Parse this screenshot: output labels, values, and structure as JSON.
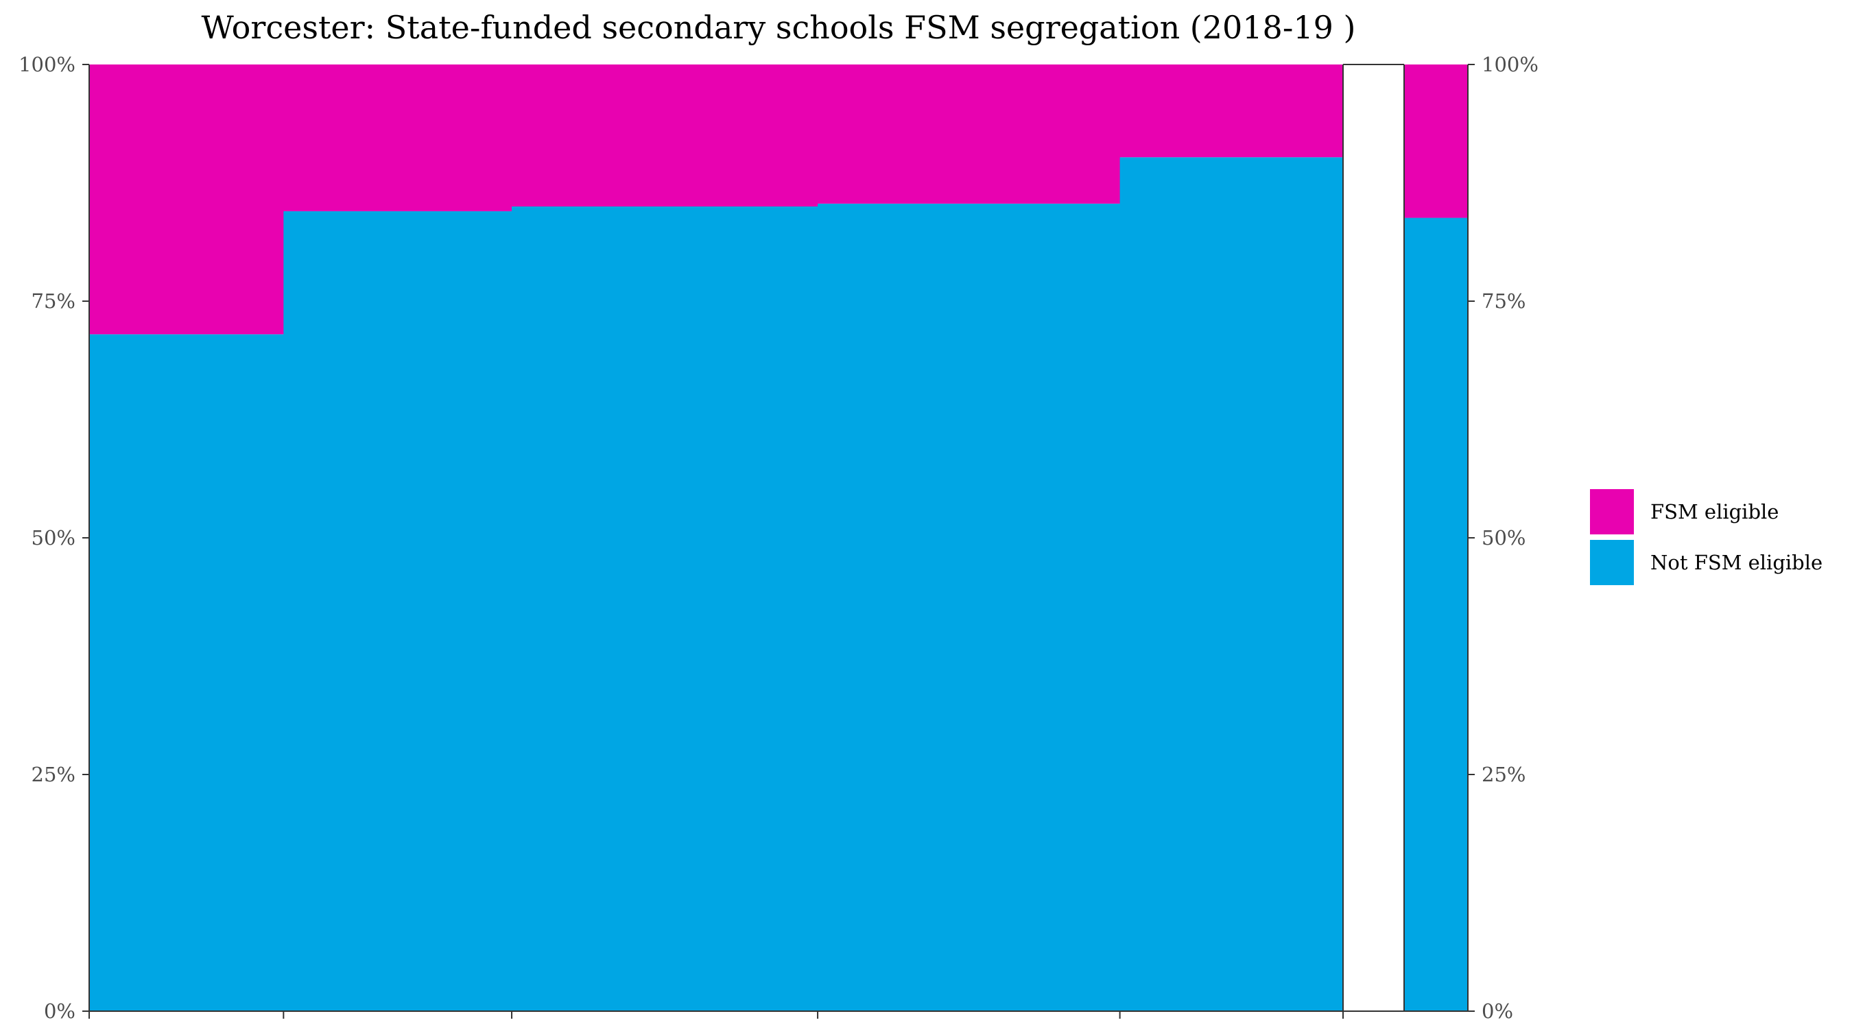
{
  "chart_data": {
    "type": "bar",
    "subtype": "marimekko-stacked-100",
    "title": "Worcester: State-funded secondary schools FSM segregation (2018-19 )",
    "xlabel": "",
    "ylabel": "",
    "ylim": [
      0,
      1
    ],
    "y_ticks": [
      0,
      0.25,
      0.5,
      0.75,
      1
    ],
    "y_tick_labels": [
      "0%",
      "25%",
      "50%",
      "75%",
      "100%"
    ],
    "y_axis_both_sides": true,
    "grid": false,
    "legend_position": "right",
    "colors": {
      "FSM eligible": "#e802b0",
      "Not FSM eligible": "#00a6e4"
    },
    "series_names": [
      "FSM eligible",
      "Not FSM eligible"
    ],
    "bars": [
      {
        "x_start": 0.0,
        "x_end": 0.155,
        "not_fsm_share": 0.715,
        "fsm_share": 0.285
      },
      {
        "x_start": 0.155,
        "x_end": 0.337,
        "not_fsm_share": 0.845,
        "fsm_share": 0.155
      },
      {
        "x_start": 0.337,
        "x_end": 0.581,
        "not_fsm_share": 0.85,
        "fsm_share": 0.15
      },
      {
        "x_start": 0.581,
        "x_end": 0.822,
        "not_fsm_share": 0.853,
        "fsm_share": 0.147
      },
      {
        "x_start": 0.822,
        "x_end": 1.0,
        "not_fsm_share": 0.902,
        "fsm_share": 0.098
      }
    ],
    "total_bar": {
      "not_fsm_share": 0.838,
      "fsm_share": 0.162
    },
    "x_ticks": [
      0,
      0.155,
      0.337,
      0.581,
      0.822,
      1.0
    ]
  }
}
